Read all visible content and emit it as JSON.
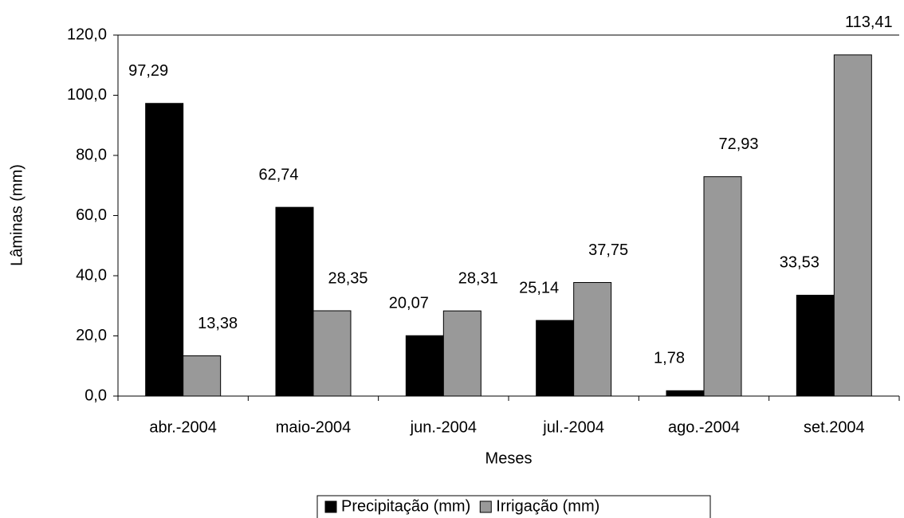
{
  "chart_data": {
    "type": "bar",
    "x_label": "Meses",
    "y_label": "Lâminas (mm)",
    "categories": [
      "abr.-2004",
      "maio-2004",
      "jun.-2004",
      "jul.-2004",
      "ago.-2004",
      "set.2004"
    ],
    "series": [
      {
        "name": "Precipitação (mm)",
        "color": "#000000",
        "values": [
          97.29,
          62.74,
          20.07,
          25.14,
          1.78,
          33.53
        ],
        "value_labels": [
          "97,29",
          "62,74",
          "20,07",
          "25,14",
          "1,78",
          "33,53"
        ]
      },
      {
        "name": "Irrigação (mm)",
        "color": "#999999",
        "values": [
          13.38,
          28.35,
          28.31,
          37.75,
          72.93,
          113.41
        ],
        "value_labels": [
          "13,38",
          "28,35",
          "28,31",
          "37,75",
          "72,93",
          "113,41"
        ]
      }
    ],
    "ylim": [
      0,
      120
    ],
    "yticks": [
      {
        "value": 0,
        "label": "0,0"
      },
      {
        "value": 20,
        "label": "20,0"
      },
      {
        "value": 40,
        "label": "40,0"
      },
      {
        "value": 60,
        "label": "60,0"
      },
      {
        "value": 80,
        "label": "80,0"
      },
      {
        "value": 100,
        "label": "100,0"
      },
      {
        "value": 120,
        "label": "120,0"
      }
    ],
    "legend": "bottom"
  }
}
